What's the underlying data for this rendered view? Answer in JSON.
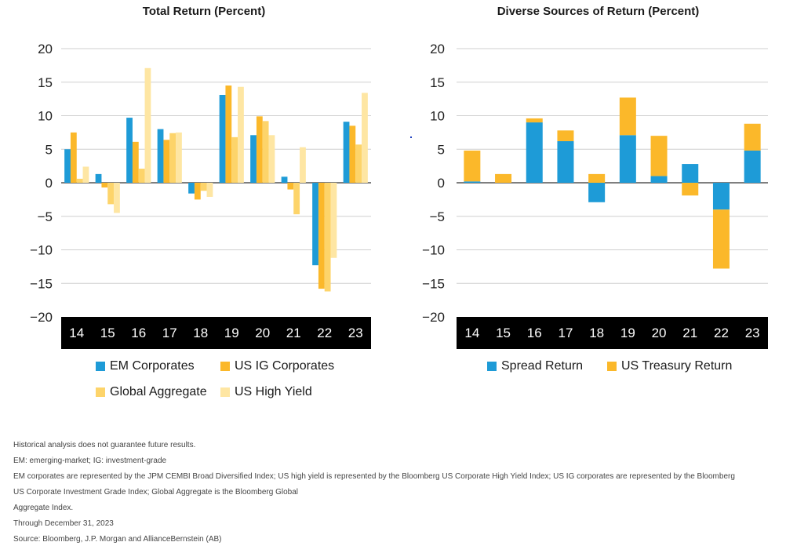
{
  "chart_data": [
    {
      "type": "bar",
      "title": "Total Return (Percent)",
      "categories": [
        "14",
        "15",
        "16",
        "17",
        "18",
        "19",
        "20",
        "21",
        "22",
        "23"
      ],
      "ylim": [
        -20,
        20
      ],
      "yticks": [
        20,
        15,
        10,
        5,
        0,
        -5,
        -10,
        -15,
        -20
      ],
      "ytick_labels": [
        "20",
        "15",
        "10",
        "5",
        "0",
        "−5",
        "−10",
        "−15",
        "−20"
      ],
      "legend_position": "bottom",
      "series": [
        {
          "name": "EM Corporates",
          "color": "#1e9bd7",
          "values": [
            5.0,
            1.3,
            9.7,
            8.0,
            -1.6,
            13.1,
            7.1,
            0.9,
            -12.3,
            9.1
          ]
        },
        {
          "name": "US IG Corporates",
          "color": "#fbb82a",
          "values": [
            7.5,
            -0.7,
            6.1,
            6.4,
            -2.5,
            14.5,
            9.9,
            -1.0,
            -15.8,
            8.5
          ]
        },
        {
          "name": "Global Aggregate",
          "color": "#fdd46a",
          "values": [
            0.6,
            -3.2,
            2.1,
            7.4,
            -1.2,
            6.8,
            9.2,
            -4.7,
            -16.2,
            5.7
          ]
        },
        {
          "name": "US High Yield",
          "color": "#fee6a3",
          "values": [
            2.4,
            -4.5,
            17.1,
            7.5,
            -2.1,
            14.3,
            7.1,
            5.3,
            -11.2,
            13.4
          ]
        }
      ]
    },
    {
      "type": "bar",
      "stacked": true,
      "title": "Diverse Sources of Return (Percent)",
      "categories": [
        "14",
        "15",
        "16",
        "17",
        "18",
        "19",
        "20",
        "21",
        "22",
        "23"
      ],
      "ylim": [
        -20,
        20
      ],
      "yticks": [
        20,
        15,
        10,
        5,
        0,
        -5,
        -10,
        -15,
        -20
      ],
      "ytick_labels": [
        "20",
        "15",
        "10",
        "5",
        "0",
        "−5",
        "−10",
        "−15",
        "−20"
      ],
      "legend_position": "bottom",
      "series": [
        {
          "name": "Spread Return",
          "color": "#1e9bd7",
          "values": [
            0.2,
            0.0,
            9.0,
            6.2,
            -2.9,
            7.1,
            1.0,
            2.8,
            -4.0,
            4.8
          ]
        },
        {
          "name": "US Treasury Return",
          "color": "#fbb82a",
          "values": [
            4.6,
            1.3,
            0.6,
            1.6,
            1.3,
            5.6,
            6.0,
            -1.9,
            -8.8,
            4.0
          ]
        }
      ]
    }
  ],
  "footnotes": [
    "Historical analysis does not guarantee future results.",
    "EM: emerging-market; IG: investment-grade",
    "EM corporates are represented by the JPM CEMBI Broad Diversified Index; US high yield is represented by the Bloomberg US Corporate High Yield Index; US IG corporates are represented by the Bloomberg",
    "US Corporate Investment Grade Index; Global Aggregate is the Bloomberg Global",
    "Aggregate Index.",
    "Through December 31, 2023",
    "Source: Bloomberg, J.P. Morgan and AllianceBernstein (AB)"
  ]
}
